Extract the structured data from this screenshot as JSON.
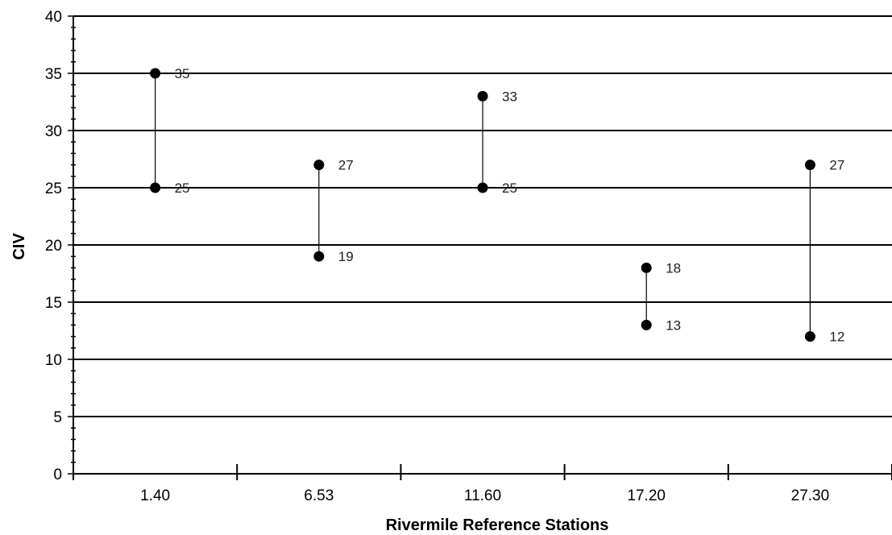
{
  "chart_data": {
    "type": "scatter",
    "subtype": "high-low range",
    "title": "",
    "xlabel": "Rivermile Reference Stations",
    "ylabel": "CIV",
    "categories": [
      "1.40",
      "6.53",
      "11.60",
      "17.20",
      "27.30"
    ],
    "series": [
      {
        "name": "",
        "values": [
          35,
          27,
          33,
          18,
          27
        ]
      },
      {
        "name": "",
        "values": [
          25,
          19,
          25,
          13,
          12
        ]
      }
    ],
    "data_labels": true,
    "ylim": [
      0,
      40
    ],
    "y_major_step": 5,
    "y_minor_step": 1,
    "y_ticks": [
      "0",
      "5",
      "10",
      "15",
      "20",
      "25",
      "30",
      "35",
      "40"
    ],
    "grid": "horizontal major",
    "legend": "none",
    "colors": {
      "marker": "#000000",
      "range_line": "#000000",
      "gridline": "#000000"
    }
  }
}
